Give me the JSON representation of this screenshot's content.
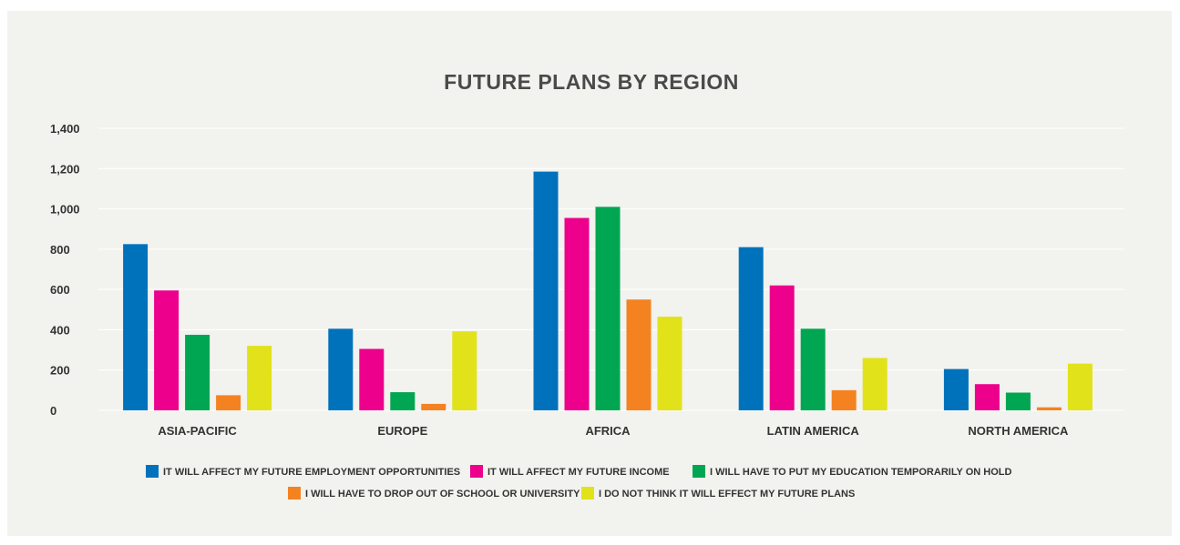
{
  "chart_data": {
    "type": "bar",
    "title": "FUTURE PLANS BY REGION",
    "xlabel": "",
    "ylabel": "",
    "ylim": [
      0,
      1400
    ],
    "yticks": [
      0,
      200,
      400,
      600,
      800,
      1000,
      1200,
      1400
    ],
    "ytick_labels": [
      "0",
      "200",
      "400",
      "600",
      "800",
      "1,000",
      "1,200",
      "1,400"
    ],
    "grid": true,
    "legend_position": "bottom",
    "categories": [
      "ASIA-PACIFIC",
      "EUROPE",
      "AFRICA",
      "LATIN AMERICA",
      "NORTH AMERICA"
    ],
    "series": [
      {
        "name": "IT WILL AFFECT MY FUTURE EMPLOYMENT OPPORTUNITIES",
        "color": "#0072bc",
        "values": [
          825,
          405,
          1185,
          810,
          205
        ]
      },
      {
        "name": "IT WILL AFFECT MY FUTURE INCOME",
        "color": "#ec008c",
        "values": [
          595,
          305,
          955,
          620,
          130
        ]
      },
      {
        "name": "I WILL HAVE TO PUT MY EDUCATION TEMPORARILY ON HOLD",
        "color": "#00a651",
        "values": [
          375,
          90,
          1010,
          405,
          88
        ]
      },
      {
        "name": "I WILL HAVE TO DROP OUT OF SCHOOL OR UNIVERSITY",
        "color": "#f58220",
        "values": [
          75,
          32,
          550,
          100,
          15
        ]
      },
      {
        "name": "I DO NOT THINK IT WILL EFFECT MY FUTURE PLANS",
        "color": "#e2e21b",
        "values": [
          320,
          392,
          465,
          260,
          232
        ]
      }
    ]
  }
}
